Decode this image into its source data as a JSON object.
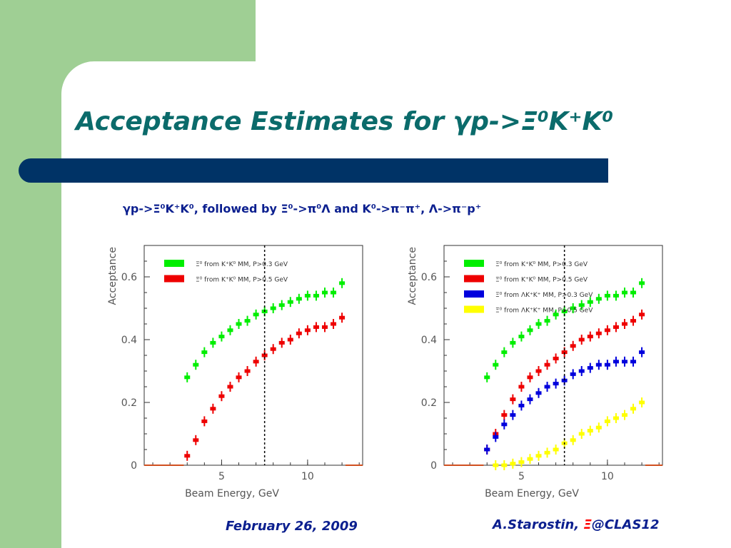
{
  "slide": {
    "title": "Acceptance Estimates for γp->Ξ⁰K⁺K⁰",
    "subtitle": "γp->Ξ⁰K⁺K⁰, followed by Ξ⁰->π⁰Λ and K⁰->π⁻π⁺, Λ->π⁻p⁺",
    "footer_date": "February 26, 2009",
    "footer_author_prefix": "A.Starostin, ",
    "footer_author_xi": "Ξ",
    "footer_author_suffix": "@CLAS12"
  },
  "colors": {
    "green_bg": "#9fcf94",
    "title": "#0b6b6b",
    "bar": "#003366",
    "text_blue": "#0b1f8f",
    "series_green": "#00ee00",
    "series_red": "#ee0000",
    "series_blue": "#0000dd",
    "series_yellow": "#ffff00"
  },
  "chart_data": [
    {
      "type": "scatter",
      "xlabel": "Beam Energy, GeV",
      "ylabel": "Acceptance",
      "xlim": [
        0.5,
        13.2
      ],
      "ylim": [
        0,
        0.7
      ],
      "x_ticks": [
        5,
        10
      ],
      "y_ticks": [
        0,
        0.2,
        0.4,
        0.6
      ],
      "vline_x": 7.5,
      "legend_placement": "top-left",
      "series": [
        {
          "name": "Ξ⁰ from K⁺K⁰ MM, P>0.3 GeV",
          "color": "#00ee00",
          "x": [
            3.0,
            3.5,
            4.0,
            4.5,
            5.0,
            5.5,
            6.0,
            6.5,
            7.0,
            7.5,
            8.0,
            8.5,
            9.0,
            9.5,
            10.0,
            10.5,
            11.0,
            11.5,
            12.0
          ],
          "y": [
            0.28,
            0.32,
            0.36,
            0.39,
            0.41,
            0.43,
            0.45,
            0.46,
            0.48,
            0.49,
            0.5,
            0.51,
            0.52,
            0.53,
            0.54,
            0.54,
            0.55,
            0.55,
            0.58
          ]
        },
        {
          "name": "Ξ⁰ from K⁺K⁰ MM, P>0.5 GeV",
          "color": "#ee0000",
          "x": [
            3.0,
            3.5,
            4.0,
            4.5,
            5.0,
            5.5,
            6.0,
            6.5,
            7.0,
            7.5,
            8.0,
            8.5,
            9.0,
            9.5,
            10.0,
            10.5,
            11.0,
            11.5,
            12.0
          ],
          "y": [
            0.03,
            0.08,
            0.14,
            0.18,
            0.22,
            0.25,
            0.28,
            0.3,
            0.33,
            0.35,
            0.37,
            0.39,
            0.4,
            0.42,
            0.43,
            0.44,
            0.44,
            0.45,
            0.47
          ]
        }
      ]
    },
    {
      "type": "scatter",
      "xlabel": "Beam Energy, GeV",
      "ylabel": "Acceptance",
      "xlim": [
        0.5,
        13.2
      ],
      "ylim": [
        0,
        0.7
      ],
      "x_ticks": [
        5,
        10
      ],
      "y_ticks": [
        0,
        0.2,
        0.4,
        0.6
      ],
      "vline_x": 7.5,
      "legend_placement": "top-left",
      "series": [
        {
          "name": "Ξ⁰ from K⁺K⁰ MM, P>0.3 GeV",
          "color": "#00ee00",
          "x": [
            3.0,
            3.5,
            4.0,
            4.5,
            5.0,
            5.5,
            6.0,
            6.5,
            7.0,
            7.5,
            8.0,
            8.5,
            9.0,
            9.5,
            10.0,
            10.5,
            11.0,
            11.5,
            12.0
          ],
          "y": [
            0.28,
            0.32,
            0.36,
            0.39,
            0.41,
            0.43,
            0.45,
            0.46,
            0.48,
            0.49,
            0.5,
            0.51,
            0.52,
            0.53,
            0.54,
            0.54,
            0.55,
            0.55,
            0.58
          ]
        },
        {
          "name": "Ξ⁰ from K⁺K⁰ MM, P>0.5 GeV",
          "color": "#ee0000",
          "x": [
            3.0,
            3.5,
            4.0,
            4.5,
            5.0,
            5.5,
            6.0,
            6.5,
            7.0,
            7.5,
            8.0,
            8.5,
            9.0,
            9.5,
            10.0,
            10.5,
            11.0,
            11.5,
            12.0
          ],
          "y": [
            0.05,
            0.1,
            0.16,
            0.21,
            0.25,
            0.28,
            0.3,
            0.32,
            0.34,
            0.36,
            0.38,
            0.4,
            0.41,
            0.42,
            0.43,
            0.44,
            0.45,
            0.46,
            0.48
          ]
        },
        {
          "name": "Ξ⁰ from ΛK⁺K⁺ MM, P>0.3 GeV",
          "color": "#0000dd",
          "x": [
            3.0,
            3.5,
            4.0,
            4.5,
            5.0,
            5.5,
            6.0,
            6.5,
            7.0,
            7.5,
            8.0,
            8.5,
            9.0,
            9.5,
            10.0,
            10.5,
            11.0,
            11.5,
            12.0
          ],
          "y": [
            0.05,
            0.09,
            0.13,
            0.16,
            0.19,
            0.21,
            0.23,
            0.25,
            0.26,
            0.27,
            0.29,
            0.3,
            0.31,
            0.32,
            0.32,
            0.33,
            0.33,
            0.33,
            0.36
          ]
        },
        {
          "name": "Ξ⁰ from ΛK⁺K⁺ MM, P>0.5 GeV",
          "color": "#ffff00",
          "x": [
            3.5,
            4.0,
            4.5,
            5.0,
            5.5,
            6.0,
            6.5,
            7.0,
            7.5,
            8.0,
            8.5,
            9.0,
            9.5,
            10.0,
            10.5,
            11.0,
            11.5,
            12.0
          ],
          "y": [
            0.0,
            0.0,
            0.005,
            0.01,
            0.02,
            0.03,
            0.04,
            0.05,
            0.07,
            0.08,
            0.1,
            0.11,
            0.12,
            0.14,
            0.15,
            0.16,
            0.18,
            0.2
          ]
        }
      ]
    }
  ]
}
